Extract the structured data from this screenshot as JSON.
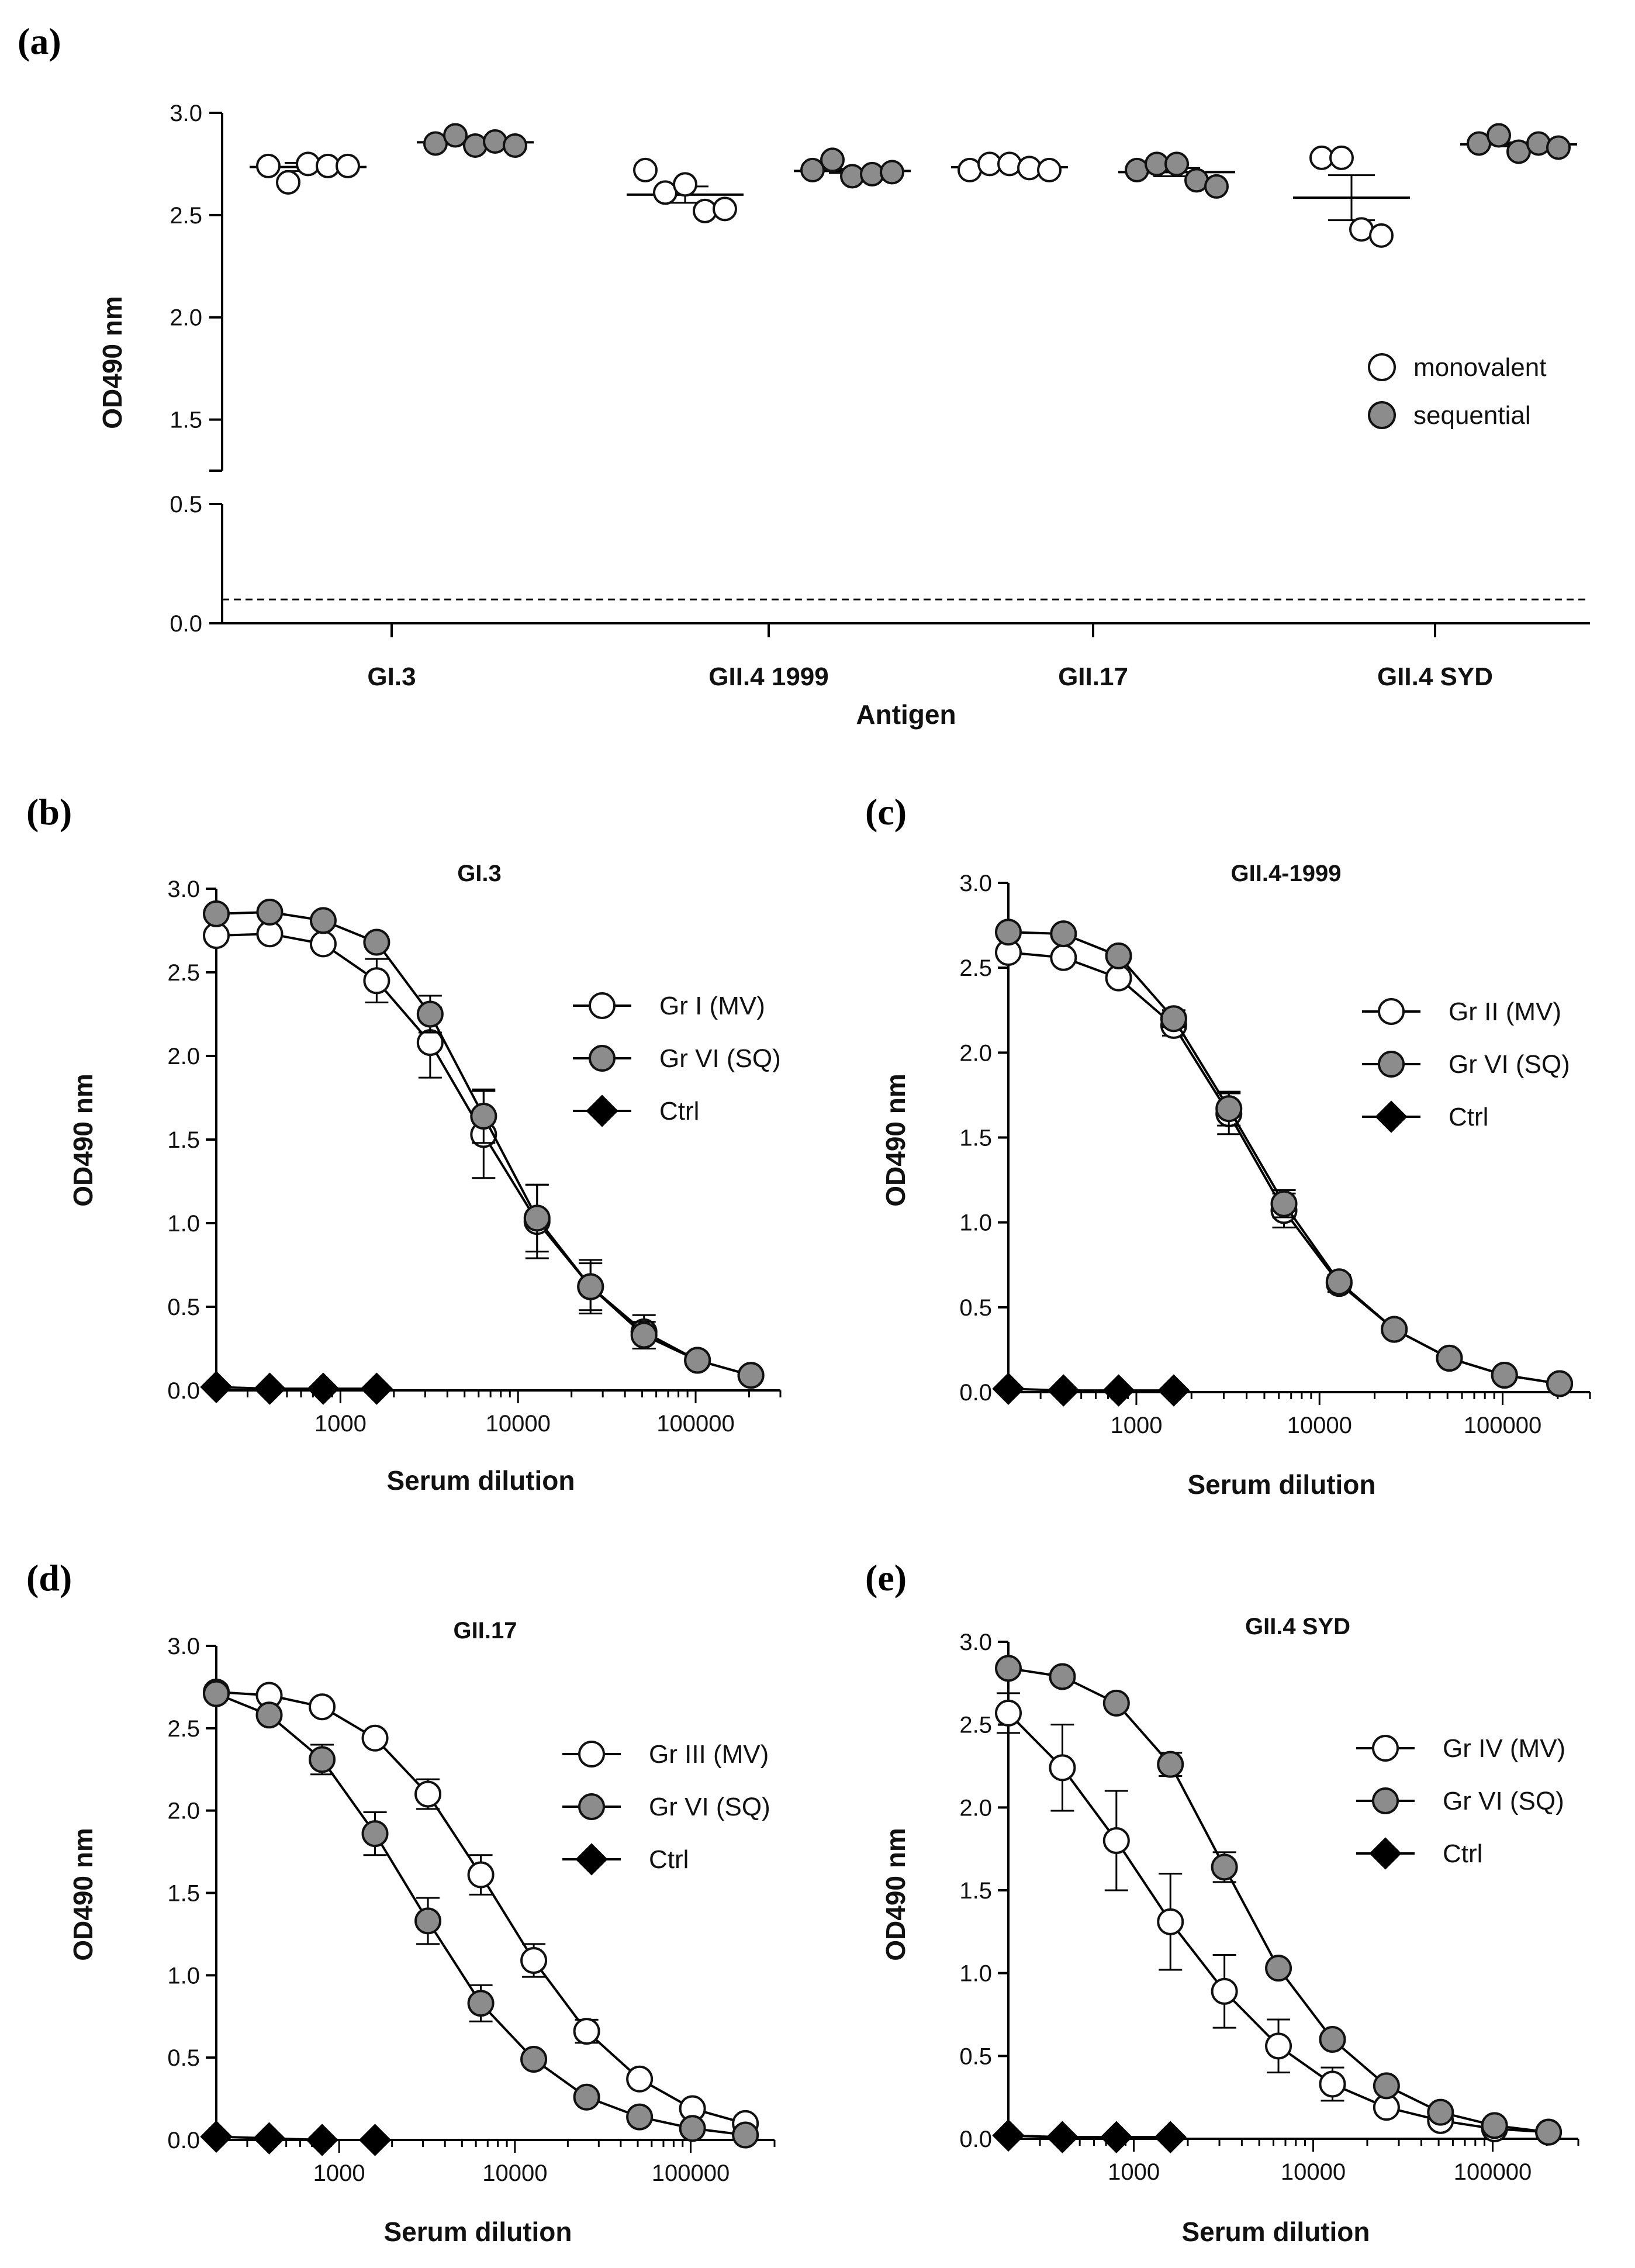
{
  "colors": {
    "open": "#ffffff",
    "filled": "#8c8c8c",
    "ctrl": "#000000",
    "stroke": "#111111"
  },
  "chart_data": [
    {
      "id": "a",
      "panel_label": "(a)",
      "type": "scatter",
      "title": "",
      "xlabel": "Antigen",
      "ylabel": "OD490 nm",
      "ylim": [
        0,
        3.0
      ],
      "y_axis_break": [
        0.5,
        1.25
      ],
      "yticks": [
        "0.0",
        "0.5",
        "1.5",
        "2.0",
        "2.5",
        "3.0"
      ],
      "cutoff_line": 0.1,
      "categories": [
        "GI.3",
        "GII.4 1999",
        "GII.17",
        "GII.4 SYD"
      ],
      "legend": [
        "monovalent",
        "sequential"
      ],
      "groups": [
        {
          "category": "GI.3",
          "series": "monovalent",
          "points": [
            2.74,
            2.66,
            2.75,
            2.74,
            2.74
          ],
          "mean": 2.735,
          "sem": 0.02
        },
        {
          "category": "GI.3",
          "series": "sequential",
          "points": [
            2.85,
            2.89,
            2.84,
            2.86,
            2.84
          ],
          "mean": 2.856,
          "sem": 0.01
        },
        {
          "category": "GII.4 1999",
          "series": "monovalent",
          "points": [
            2.72,
            2.61,
            2.65,
            2.52,
            2.53
          ],
          "mean": 2.6,
          "sem": 0.04
        },
        {
          "category": "GII.4 1999",
          "series": "sequential",
          "points": [
            2.72,
            2.77,
            2.69,
            2.7,
            2.71
          ],
          "mean": 2.716,
          "sem": 0.01
        },
        {
          "category": "GII.17",
          "series": "monovalent",
          "points": [
            2.72,
            2.75,
            2.75,
            2.73,
            2.72
          ],
          "mean": 2.734,
          "sem": 0.01
        },
        {
          "category": "GII.17",
          "series": "sequential",
          "points": [
            2.72,
            2.75,
            2.75,
            2.67,
            2.64
          ],
          "mean": 2.71,
          "sem": 0.02
        },
        {
          "category": "GII.4 SYD",
          "series": "monovalent",
          "points": [
            2.78,
            2.78,
            2.43,
            2.4
          ],
          "mean": 2.585,
          "sem": 0.11
        },
        {
          "category": "GII.4 SYD",
          "series": "sequential",
          "points": [
            2.85,
            2.89,
            2.81,
            2.85,
            2.83
          ],
          "mean": 2.846,
          "sem": 0.01
        }
      ]
    },
    {
      "id": "b",
      "panel_label": "(b)",
      "type": "line",
      "title": "GI.3",
      "xlabel": "Serum dilution",
      "ylabel": "OD490 nm",
      "x_scale": "log",
      "xlim": [
        200,
        300000
      ],
      "ylim": [
        0,
        3.0
      ],
      "yticks": [
        "0.0",
        "0.5",
        "1.0",
        "1.5",
        "2.0",
        "2.5",
        "3.0"
      ],
      "xticks": [
        "1000",
        "10000",
        "100000"
      ],
      "x": [
        200,
        400,
        800,
        1600,
        3200,
        6400,
        12800,
        25600,
        51200,
        102400,
        204800
      ],
      "series": [
        {
          "name": "Gr I (MV)",
          "marker": "open",
          "values": [
            2.72,
            2.73,
            2.67,
            2.45,
            2.08,
            1.53,
            1.01,
            0.62,
            0.35,
            0.18,
            0.09
          ],
          "errors": [
            0,
            0,
            0,
            0.13,
            0.21,
            0.26,
            0.22,
            0.14,
            0.1,
            0,
            0
          ]
        },
        {
          "name": "Gr VI (SQ)",
          "marker": "filled",
          "values": [
            2.85,
            2.86,
            2.81,
            2.68,
            2.25,
            1.64,
            1.03,
            0.62,
            0.33,
            0.18,
            0.09
          ],
          "errors": [
            0,
            0,
            0,
            0,
            0.11,
            0.16,
            0.2,
            0.16,
            0.08,
            0,
            0
          ]
        },
        {
          "name": "Ctrl",
          "marker": "diamond",
          "values": [
            0.02,
            0.01,
            0.01,
            0.01
          ],
          "x": [
            200,
            400,
            800,
            1600
          ],
          "errors": [
            0,
            0,
            0,
            0
          ]
        }
      ]
    },
    {
      "id": "c",
      "panel_label": "(c)",
      "type": "line",
      "title": "GII.4-1999",
      "xlabel": "Serum dilution",
      "ylabel": "OD490 nm",
      "x_scale": "log",
      "xlim": [
        200,
        300000
      ],
      "ylim": [
        0,
        3.0
      ],
      "yticks": [
        "0.0",
        "0.5",
        "1.0",
        "1.5",
        "2.0",
        "2.5",
        "3.0"
      ],
      "xticks": [
        "1000",
        "10000",
        "100000"
      ],
      "x": [
        200,
        400,
        800,
        1600,
        3200,
        6400,
        12800,
        25600,
        51200,
        102400,
        204800
      ],
      "series": [
        {
          "name": "Gr II (MV)",
          "marker": "open",
          "values": [
            2.59,
            2.56,
            2.44,
            2.16,
            1.64,
            1.07,
            0.64,
            0.37,
            0.2,
            0.1,
            0.05
          ],
          "errors": [
            0,
            0,
            0,
            0.06,
            0.12,
            0.1,
            0.05,
            0,
            0,
            0,
            0
          ]
        },
        {
          "name": "Gr VI (SQ)",
          "marker": "filled",
          "values": [
            2.71,
            2.7,
            2.57,
            2.2,
            1.67,
            1.11,
            0.65,
            0.37,
            0.2,
            0.1,
            0.05
          ],
          "errors": [
            0,
            0,
            0,
            0.05,
            0.1,
            0.08,
            0.04,
            0,
            0,
            0,
            0
          ]
        },
        {
          "name": "Ctrl",
          "marker": "diamond",
          "values": [
            0.02,
            0.01,
            0.01,
            0.01
          ],
          "x": [
            200,
            400,
            800,
            1600
          ],
          "errors": [
            0,
            0,
            0,
            0
          ]
        }
      ]
    },
    {
      "id": "d",
      "panel_label": "(d)",
      "type": "line",
      "title": "GII.17",
      "xlabel": "Serum dilution",
      "ylabel": "OD490 nm",
      "x_scale": "log",
      "xlim": [
        200,
        300000
      ],
      "ylim": [
        0,
        3.0
      ],
      "yticks": [
        "0.0",
        "0.5",
        "1.0",
        "1.5",
        "2.0",
        "2.5",
        "3.0"
      ],
      "xticks": [
        "1000",
        "10000",
        "100000"
      ],
      "x": [
        200,
        400,
        800,
        1600,
        3200,
        6400,
        12800,
        25600,
        51200,
        102400,
        204800
      ],
      "series": [
        {
          "name": "Gr III (MV)",
          "marker": "open",
          "values": [
            2.72,
            2.7,
            2.63,
            2.44,
            2.1,
            1.61,
            1.09,
            0.66,
            0.37,
            0.19,
            0.1
          ],
          "errors": [
            0.04,
            0,
            0,
            0,
            0.09,
            0.12,
            0.1,
            0.07,
            0,
            0,
            0
          ]
        },
        {
          "name": "Gr VI (SQ)",
          "marker": "filled",
          "values": [
            2.71,
            2.58,
            2.31,
            1.86,
            1.33,
            0.83,
            0.49,
            0.26,
            0.14,
            0.07,
            0.03
          ],
          "errors": [
            0.04,
            0,
            0.09,
            0.13,
            0.14,
            0.11,
            0,
            0,
            0,
            0,
            0
          ]
        },
        {
          "name": "Ctrl",
          "marker": "diamond",
          "values": [
            0.02,
            0.01,
            0.0,
            0.0
          ],
          "x": [
            200,
            400,
            800,
            1600
          ],
          "errors": [
            0,
            0,
            0,
            0
          ]
        }
      ]
    },
    {
      "id": "e",
      "panel_label": "(e)",
      "type": "line",
      "title": "GII.4 SYD",
      "xlabel": "Serum dilution",
      "ylabel": "OD490 nm",
      "x_scale": "log",
      "xlim": [
        200,
        300000
      ],
      "ylim": [
        0,
        3.0
      ],
      "yticks": [
        "0.0",
        "0.5",
        "1.0",
        "1.5",
        "2.0",
        "2.5",
        "3.0"
      ],
      "xticks": [
        "1000",
        "10000",
        "100000"
      ],
      "x": [
        200,
        400,
        800,
        1600,
        3200,
        6400,
        12800,
        25600,
        51200,
        102400,
        204800
      ],
      "series": [
        {
          "name": "Gr IV (MV)",
          "marker": "open",
          "values": [
            2.57,
            2.24,
            1.8,
            1.31,
            0.89,
            0.56,
            0.33,
            0.19,
            0.11,
            0.06,
            0.04
          ],
          "errors": [
            0.12,
            0.26,
            0.3,
            0.29,
            0.22,
            0.16,
            0.1,
            0,
            0,
            0,
            0
          ]
        },
        {
          "name": "Gr VI (SQ)",
          "marker": "filled",
          "values": [
            2.84,
            2.79,
            2.63,
            2.26,
            1.64,
            1.03,
            0.6,
            0.32,
            0.16,
            0.08,
            0.04
          ],
          "errors": [
            0,
            0,
            0,
            0.07,
            0.09,
            0,
            0,
            0,
            0,
            0,
            0
          ]
        },
        {
          "name": "Ctrl",
          "marker": "diamond",
          "values": [
            0.02,
            0.01,
            0.01,
            0.01
          ],
          "x": [
            200,
            400,
            800,
            1600
          ],
          "errors": [
            0,
            0,
            0,
            0
          ]
        }
      ]
    }
  ]
}
